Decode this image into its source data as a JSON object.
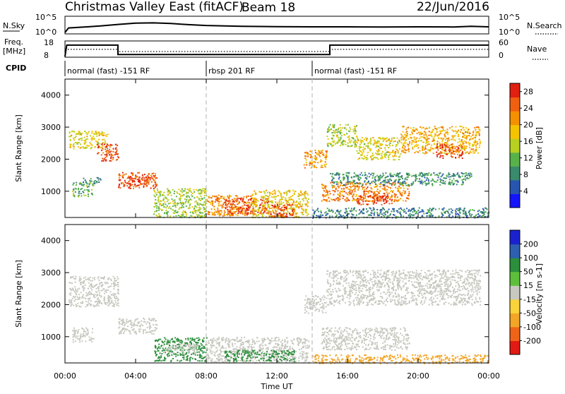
{
  "header": {
    "title": "Christmas Valley East (fitACF)",
    "beam": "Beam 18",
    "date": "22/Jun/2016"
  },
  "noise_panel": {
    "left_label": "N.Sky",
    "right_label": "N.Search",
    "left_ticks": [
      "10^5",
      "10^0"
    ],
    "right_ticks": [
      "10^5",
      "10^0"
    ]
  },
  "freq_panel": {
    "left_label_1": "Freq.",
    "left_label_2": "[MHz]",
    "right_label": "Nave",
    "left_ticks": [
      "18",
      "8"
    ],
    "right_ticks": [
      "60",
      "0"
    ]
  },
  "cpid": {
    "label": "CPID",
    "segments": [
      {
        "start_h": 0,
        "end_h": 8,
        "text": "normal (fast) -151 RF"
      },
      {
        "start_h": 8,
        "end_h": 14,
        "text": "rbsp 201 RF"
      },
      {
        "start_h": 14,
        "end_h": 24,
        "text": "normal (fast) -151 RF"
      }
    ]
  },
  "xaxis": {
    "title": "Time UT",
    "ticks": [
      "00:00",
      "04:00",
      "08:00",
      "12:00",
      "16:00",
      "20:00",
      "00:00"
    ]
  },
  "colors": {
    "power": [
      "#1414ff",
      "#2855b0",
      "#3a8a6e",
      "#58b24a",
      "#b8d020",
      "#f5c400",
      "#f59000",
      "#f06010",
      "#e02010"
    ],
    "velocity": [
      "#e21a14",
      "#f06418",
      "#f3a526",
      "#f8d33a",
      "#c8c8c0",
      "#5ec03a",
      "#2c8f3c",
      "#2e5fb0",
      "#1a22d0"
    ],
    "guide": "#bfbfbf"
  },
  "chart_data": [
    {
      "type": "line",
      "name": "noise",
      "title": "",
      "ylabel": "N.Sky",
      "y2label": "N.Search",
      "yscale": "log",
      "ylim": [
        1,
        100000
      ],
      "x_hours": [
        0,
        0.2,
        1,
        2,
        3,
        4,
        5,
        6,
        7,
        8,
        10,
        12,
        14,
        16,
        18,
        20,
        22,
        23,
        24
      ],
      "values": [
        1,
        40,
        80,
        200,
        700,
        2000,
        2500,
        1500,
        600,
        300,
        150,
        120,
        100,
        100,
        90,
        100,
        90,
        150,
        100
      ]
    },
    {
      "type": "line",
      "name": "frequency",
      "title": "",
      "ylabel": "Freq. [MHz]",
      "y2label": "Nave",
      "ylim": [
        8,
        18
      ],
      "series": [
        {
          "name": "Freq.",
          "x_hours": [
            0,
            0.1,
            3,
            3,
            15,
            15,
            24
          ],
          "values": [
            8,
            16.5,
            16.5,
            9.5,
            9.5,
            16.5,
            16.5
          ]
        },
        {
          "name": "Nave",
          "x_hours": [
            0,
            3,
            3,
            15,
            15,
            24
          ],
          "values": [
            32,
            32,
            22,
            22,
            32,
            32
          ]
        }
      ]
    },
    {
      "type": "heatmap",
      "name": "power",
      "title": "",
      "xlabel": "Time UT",
      "ylabel": "Slant Range [km]",
      "xlim_hours": [
        0,
        24
      ],
      "ylim": [
        180,
        4500
      ],
      "yticks": [
        1000,
        2000,
        3000,
        4000
      ],
      "colorbar": {
        "label": "Power [dB]",
        "ticks": [
          4,
          8,
          12,
          16,
          20,
          24,
          28
        ],
        "range": [
          0,
          30
        ]
      },
      "patches": [
        {
          "h0": 0.2,
          "h1": 2.4,
          "r0": 2350,
          "r1": 2900,
          "v": 17
        },
        {
          "h0": 1.8,
          "h1": 3.0,
          "r0": 1950,
          "r1": 2500,
          "v": 26
        },
        {
          "h0": 0.4,
          "h1": 1.6,
          "r0": 850,
          "r1": 1300,
          "v": 11
        },
        {
          "h0": 1.0,
          "h1": 2.0,
          "r0": 1250,
          "r1": 1450,
          "v": 8
        },
        {
          "h0": 3.0,
          "h1": 5.2,
          "r0": 1100,
          "r1": 1600,
          "v": 25
        },
        {
          "h0": 3.5,
          "h1": 4.8,
          "r0": 1200,
          "r1": 1450,
          "v": 28
        },
        {
          "h0": 5.0,
          "h1": 8.0,
          "r0": 200,
          "r1": 1100,
          "v": 14
        },
        {
          "h0": 8.0,
          "h1": 10.5,
          "r0": 250,
          "r1": 900,
          "v": 22
        },
        {
          "h0": 9.0,
          "h1": 11.5,
          "r0": 300,
          "r1": 800,
          "v": 27
        },
        {
          "h0": 10.5,
          "h1": 13.8,
          "r0": 200,
          "r1": 1050,
          "v": 18
        },
        {
          "h0": 11.5,
          "h1": 13.0,
          "r0": 200,
          "r1": 600,
          "v": 27
        },
        {
          "h0": 13.5,
          "h1": 14.8,
          "r0": 1750,
          "r1": 2300,
          "v": 22
        },
        {
          "h0": 14.8,
          "h1": 16.5,
          "r0": 2400,
          "r1": 3100,
          "v": 15
        },
        {
          "h0": 16.5,
          "h1": 19.0,
          "r0": 2000,
          "r1": 2700,
          "v": 17
        },
        {
          "h0": 19.0,
          "h1": 23.5,
          "r0": 2200,
          "r1": 3050,
          "v": 20
        },
        {
          "h0": 21.0,
          "h1": 22.5,
          "r0": 2050,
          "r1": 2500,
          "v": 27
        },
        {
          "h0": 14.5,
          "h1": 19.5,
          "r0": 700,
          "r1": 1300,
          "v": 23
        },
        {
          "h0": 16.5,
          "h1": 18.5,
          "r0": 600,
          "r1": 900,
          "v": 27
        },
        {
          "h0": 14.0,
          "h1": 24.0,
          "r0": 180,
          "r1": 500,
          "v": 8
        },
        {
          "h0": 15.0,
          "h1": 23.0,
          "r0": 1200,
          "r1": 1600,
          "v": 9
        }
      ]
    },
    {
      "type": "heatmap",
      "name": "velocity",
      "title": "",
      "xlabel": "Time UT",
      "ylabel": "Slant Range [km]",
      "xlim_hours": [
        0,
        24
      ],
      "ylim": [
        180,
        4500
      ],
      "yticks": [
        1000,
        2000,
        3000,
        4000
      ],
      "colorbar": {
        "label": "Velocity [m s-1]",
        "ticks": [
          "200",
          "100",
          "50",
          "15",
          "-15",
          "-50",
          "-100",
          "-200"
        ],
        "range": [
          -250,
          250
        ]
      },
      "patches": [
        {
          "h0": 0.2,
          "h1": 3.0,
          "r0": 1950,
          "r1": 2900,
          "v": 0
        },
        {
          "h0": 0.4,
          "h1": 1.6,
          "r0": 850,
          "r1": 1300,
          "v": 0
        },
        {
          "h0": 3.0,
          "h1": 5.2,
          "r0": 1100,
          "r1": 1600,
          "v": 0
        },
        {
          "h0": 5.0,
          "h1": 8.0,
          "r0": 250,
          "r1": 1000,
          "v": 40
        },
        {
          "h0": 5.5,
          "h1": 7.5,
          "r0": 500,
          "r1": 800,
          "v": 0
        },
        {
          "h0": 8.0,
          "h1": 13.8,
          "r0": 200,
          "r1": 1000,
          "v": 0
        },
        {
          "h0": 9.0,
          "h1": 13.0,
          "r0": 250,
          "r1": 600,
          "v": 45
        },
        {
          "h0": 13.5,
          "h1": 14.8,
          "r0": 1750,
          "r1": 2300,
          "v": 0
        },
        {
          "h0": 14.8,
          "h1": 23.5,
          "r0": 2000,
          "r1": 3100,
          "v": 0
        },
        {
          "h0": 14.5,
          "h1": 19.5,
          "r0": 600,
          "r1": 1300,
          "v": 0
        },
        {
          "h0": 14.0,
          "h1": 24.0,
          "r0": 180,
          "r1": 450,
          "v": -45
        }
      ]
    }
  ]
}
